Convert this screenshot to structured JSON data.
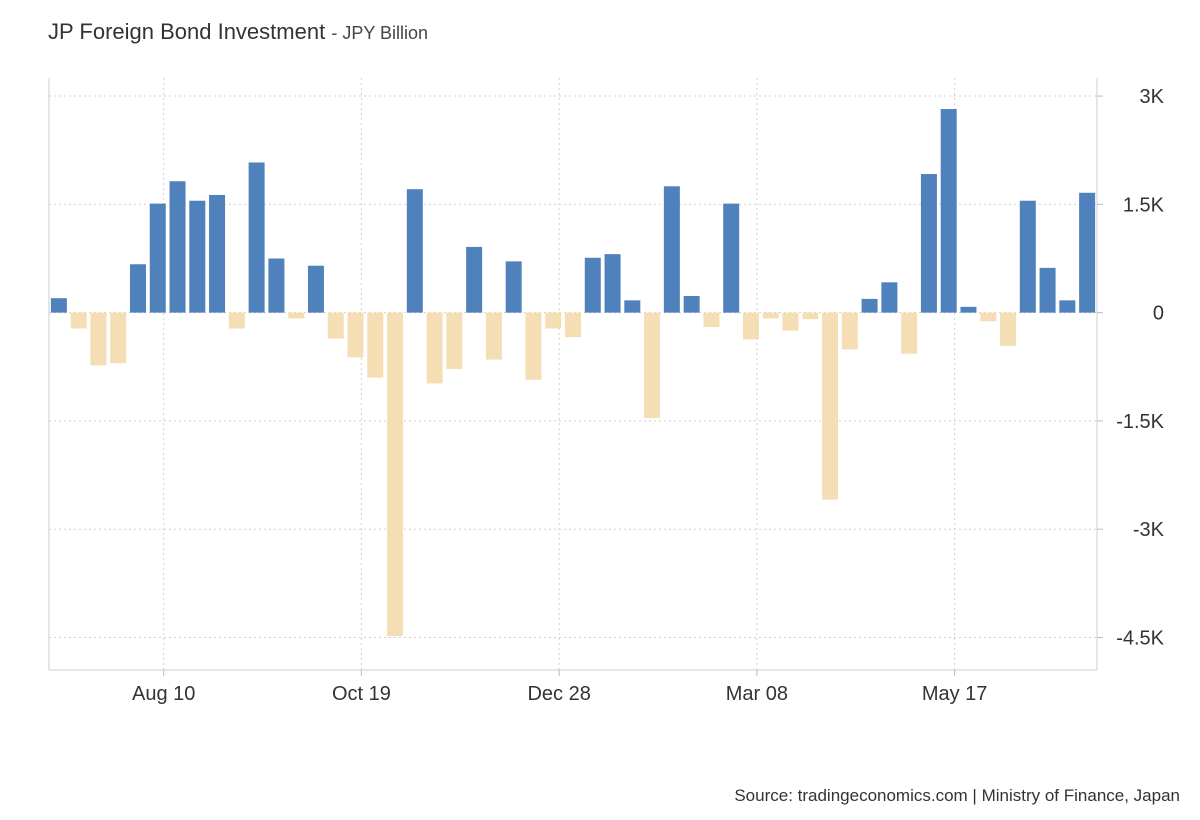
{
  "chart_data": {
    "type": "bar",
    "title": "JP Foreign Bond Investment",
    "subtitle": "JPY Billion",
    "xlabel": "",
    "ylabel": "",
    "ylim": [
      -4950,
      3250
    ],
    "yticks": [
      3000,
      1500,
      0,
      -1500,
      -3000,
      -4500
    ],
    "ytick_labels": [
      "3K",
      "1.5K",
      "0",
      "-1.5K",
      "-3K",
      "-4.5K"
    ],
    "xtick_labels": [
      "Aug 10",
      "Oct 19",
      "Dec 28",
      "Mar 08",
      "May 17"
    ],
    "xtick_bar_index": [
      5.3,
      15.3,
      25.3,
      35.3,
      45.3
    ],
    "grid": true,
    "values": [
      200,
      -220,
      -730,
      -700,
      670,
      1510,
      1820,
      1550,
      1630,
      -220,
      2080,
      750,
      -80,
      650,
      -360,
      -620,
      -900,
      -4480,
      1710,
      -980,
      -780,
      910,
      -650,
      710,
      -930,
      -220,
      -340,
      760,
      810,
      170,
      -1460,
      1750,
      230,
      -200,
      1510,
      -370,
      -80,
      -250,
      -90,
      -2590,
      -510,
      190,
      420,
      -570,
      1920,
      2820,
      80,
      -120,
      -460,
      1550,
      620,
      170,
      1660
    ],
    "positive_color": "#4f81bd",
    "negative_color": "#f5deb3"
  },
  "source": "Source: tradingeconomics.com | Ministry of Finance, Japan"
}
